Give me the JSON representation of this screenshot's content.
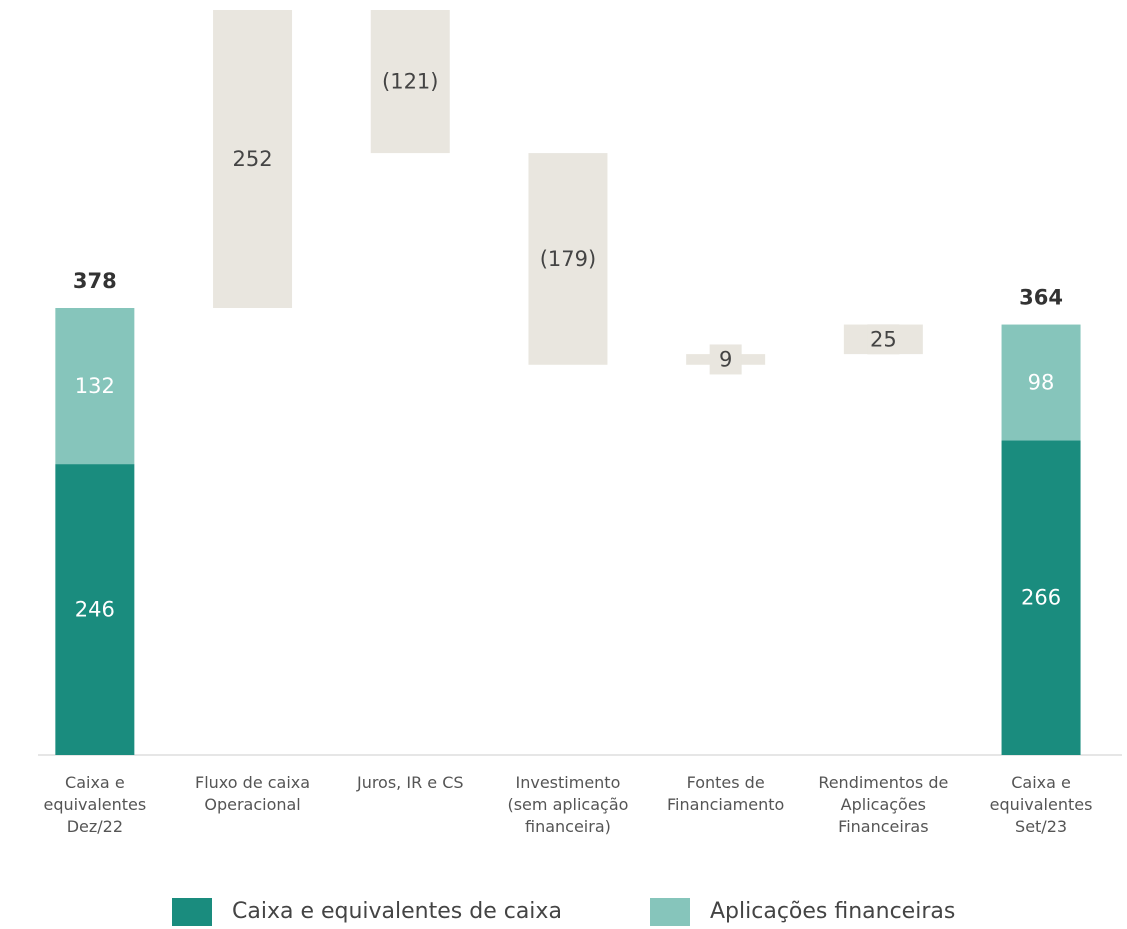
{
  "chart_data": {
    "type": "waterfall",
    "categories": [
      "Caixa e\nequivalentes\nDez/22",
      "Fluxo de caixa\nOperacional",
      "Juros, IR e CS",
      "Investimento\n(sem aplicação\nfinanceira)",
      "Fontes de\nFinanciamento",
      "Rendimentos de\nAplicações\nFinanceiras",
      "Caixa e\nequivalentes\nSet/23"
    ],
    "series": [
      {
        "name": "Caixa e equivalentes de caixa",
        "color": "#1a8c7e",
        "values": [
          246,
          null,
          null,
          null,
          null,
          null,
          266
        ]
      },
      {
        "name": "Aplicações financeiras",
        "color": "#86c5bb",
        "values": [
          132,
          null,
          null,
          null,
          null,
          null,
          98
        ]
      }
    ],
    "totals": [
      378,
      null,
      null,
      null,
      null,
      null,
      364
    ],
    "deltas": {
      "color": "#e9e6df",
      "values": [
        null,
        252,
        -121,
        -179,
        9,
        25,
        null
      ],
      "value_labels": [
        null,
        "252",
        "(121)",
        "(179)",
        "9",
        "25",
        null
      ]
    }
  }
}
